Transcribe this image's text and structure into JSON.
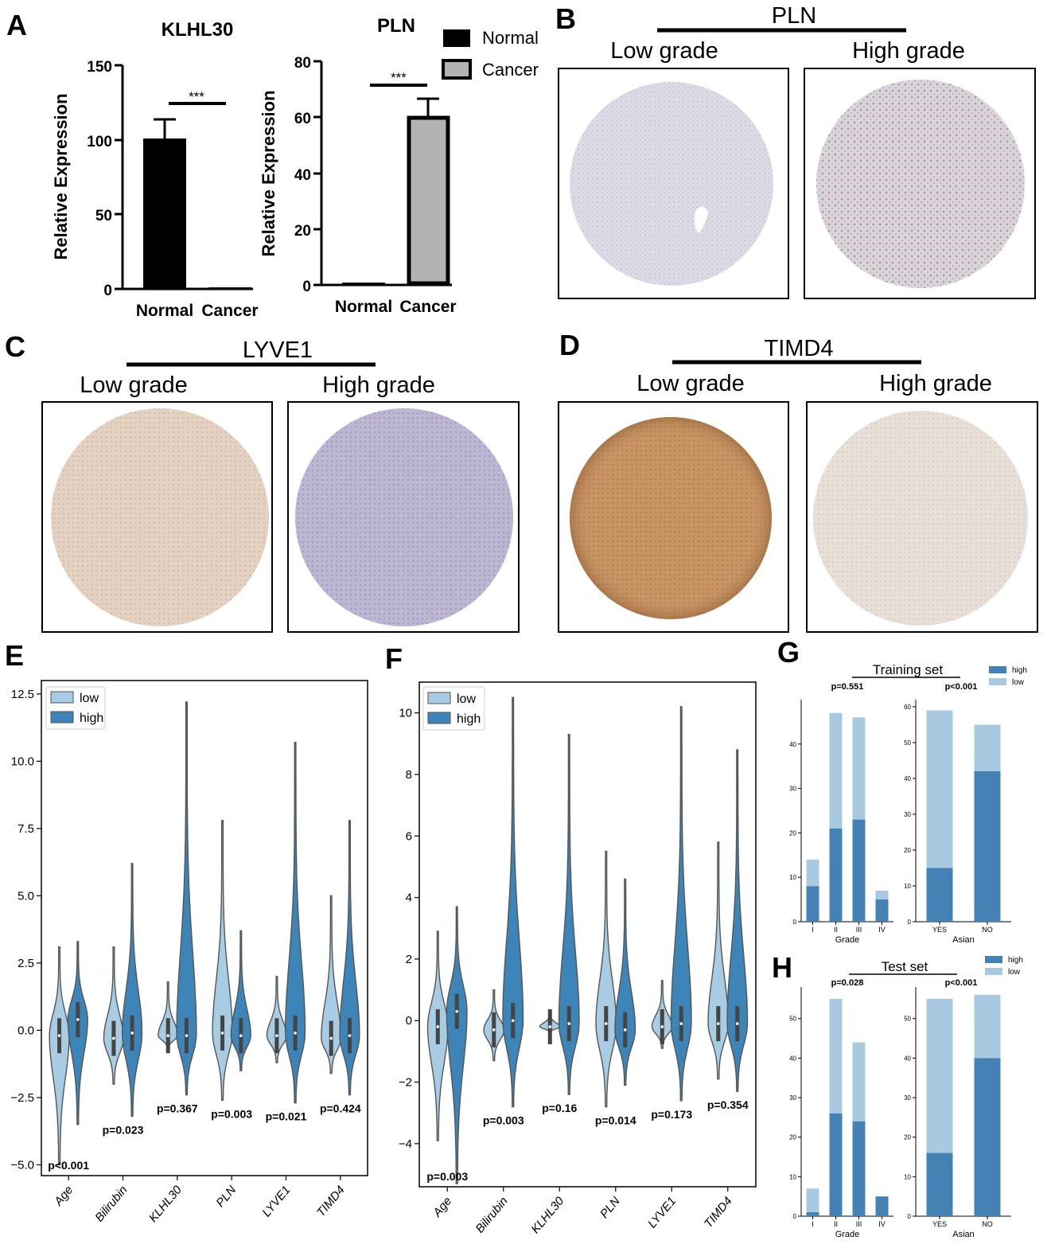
{
  "panel_labels": [
    "A",
    "B",
    "C",
    "D",
    "E",
    "F",
    "G",
    "H"
  ],
  "colors": {
    "bar_normal": "#000000",
    "bar_cancer": "#b3b3b3",
    "violin_low": "#a8cce4",
    "violin_high": "#3d85b8",
    "stack_low": "#a9c9e0",
    "stack_high": "#4481b4",
    "tissue_pale_blue": "#d8d8e2",
    "tissue_brown": "#c28a5a",
    "tissue_violet": "#b8b0d0",
    "tissue_light_tan": "#e2d6cc"
  },
  "ihc_panels": [
    {
      "id": "B",
      "gene": "PLN",
      "left_label": "Low grade",
      "right_label": "High grade"
    },
    {
      "id": "C",
      "gene": "LYVE1",
      "left_label": "Low grade",
      "right_label": "High grade"
    },
    {
      "id": "D",
      "gene": "TIMD4",
      "left_label": "Low grade",
      "right_label": "High grade"
    }
  ],
  "chart_data": [
    {
      "panel": "A",
      "type": "bar",
      "title": "KLHL30",
      "categories": [
        "Normal",
        "Cancer"
      ],
      "values": [
        101,
        0.5
      ],
      "error": [
        13,
        0
      ],
      "ylabel": "Relative Expression",
      "ylim": [
        0,
        150
      ],
      "yticks": [
        "0",
        "50",
        "100",
        "150"
      ],
      "annotation": "***"
    },
    {
      "panel": "A",
      "type": "bar",
      "title": "PLN",
      "categories": [
        "Normal",
        "Cancer"
      ],
      "values": [
        1,
        60
      ],
      "error": [
        0,
        7
      ],
      "ylabel": "Relative Expression",
      "ylim": [
        0,
        80
      ],
      "yticks": [
        "0",
        "20",
        "40",
        "60",
        "80"
      ],
      "annotation": "***",
      "legend": [
        "Normal",
        "Cancer"
      ]
    },
    {
      "panel": "E",
      "type": "violin",
      "categories": [
        "Age",
        "Bilirubin",
        "KLHL30",
        "PLN",
        "LYVE1",
        "TIMD4"
      ],
      "legend": [
        "low",
        "high"
      ],
      "ylim": [
        -5.4,
        13.0
      ],
      "yticks": [
        "−5.0",
        "−2.5",
        "0.0",
        "2.5",
        "5.0",
        "7.5",
        "10.0",
        "12.5"
      ],
      "pvalues": [
        "p<0.001",
        "p=0.023",
        "p=0.367",
        "p=0.003",
        "p=0.021",
        "p=0.424"
      ],
      "series": [
        {
          "name": "low",
          "min": [
            -5.0,
            -2.0,
            -0.7,
            -2.6,
            -1.2,
            -1.6
          ],
          "max": [
            3.1,
            3.1,
            1.8,
            7.8,
            2.0,
            5.0
          ],
          "median": [
            -0.2,
            -0.3,
            -0.2,
            -0.1,
            -0.2,
            -0.3
          ]
        },
        {
          "name": "high",
          "min": [
            -3.5,
            -3.2,
            -2.4,
            -1.5,
            -2.7,
            -2.4
          ],
          "max": [
            3.3,
            6.2,
            12.2,
            3.7,
            10.7,
            7.8
          ],
          "median": [
            0.4,
            -0.1,
            -0.2,
            -0.2,
            -0.1,
            -0.2
          ]
        }
      ]
    },
    {
      "panel": "F",
      "type": "violin",
      "categories": [
        "Age",
        "Bilirubin",
        "KLHL30",
        "PLN",
        "LYVE1",
        "TIMD4"
      ],
      "legend": [
        "low",
        "high"
      ],
      "ylim": [
        -5.4,
        11.0
      ],
      "yticks": [
        "−4",
        "−2",
        "0",
        "2",
        "4",
        "6",
        "8",
        "10"
      ],
      "pvalues": [
        "p=0.003",
        "p=0.003",
        "p=0.16",
        "p=0.014",
        "p=0.173",
        "p=0.354"
      ],
      "series": [
        {
          "name": "low",
          "min": [
            -3.9,
            -1.3,
            -0.4,
            -2.8,
            -0.9,
            -1.9
          ],
          "max": [
            2.9,
            1.0,
            0.3,
            5.5,
            1.3,
            5.8
          ],
          "median": [
            -0.2,
            -0.3,
            -0.2,
            -0.1,
            -0.2,
            -0.1
          ]
        },
        {
          "name": "high",
          "min": [
            -5.3,
            -2.8,
            -2.4,
            -2.1,
            -2.6,
            -2.3
          ],
          "max": [
            3.7,
            10.5,
            9.3,
            4.6,
            10.2,
            8.8
          ],
          "median": [
            0.3,
            0.0,
            -0.1,
            -0.3,
            -0.1,
            -0.1
          ]
        }
      ]
    },
    {
      "panel": "G",
      "type": "bar",
      "stacked": true,
      "title": "Training set",
      "legend": [
        "high",
        "low"
      ],
      "subplots": [
        {
          "xlabel": "Grade",
          "categories": [
            "I",
            "II",
            "III",
            "IV"
          ],
          "high": [
            8,
            21,
            23,
            5
          ],
          "total": [
            14,
            47,
            46,
            7
          ],
          "ylim": [
            0,
            50
          ],
          "yticks": [
            "0",
            "10",
            "20",
            "30",
            "40"
          ],
          "pvalue": "p=0.551"
        },
        {
          "xlabel": "Asian",
          "categories": [
            "YES",
            "NO"
          ],
          "high": [
            15,
            42
          ],
          "total": [
            59,
            55
          ],
          "ylim": [
            0,
            62
          ],
          "yticks": [
            "0",
            "10",
            "20",
            "30",
            "40",
            "50",
            "60"
          ],
          "pvalue": "p<0.001"
        }
      ]
    },
    {
      "panel": "H",
      "type": "bar",
      "stacked": true,
      "title": "Test set",
      "legend": [
        "high",
        "low"
      ],
      "subplots": [
        {
          "xlabel": "Grade",
          "categories": [
            "I",
            "II",
            "III",
            "IV"
          ],
          "high": [
            1,
            26,
            24,
            5
          ],
          "total": [
            7,
            55,
            44,
            5
          ],
          "ylim": [
            0,
            58
          ],
          "yticks": [
            "0",
            "10",
            "20",
            "30",
            "40",
            "50"
          ],
          "pvalue": "p=0.028"
        },
        {
          "xlabel": "Asian",
          "categories": [
            "YES",
            "NO"
          ],
          "high": [
            16,
            40
          ],
          "total": [
            55,
            56
          ],
          "ylim": [
            0,
            58
          ],
          "yticks": [
            "0",
            "10",
            "20",
            "30",
            "40",
            "50"
          ],
          "pvalue": "p<0.001"
        }
      ]
    }
  ]
}
